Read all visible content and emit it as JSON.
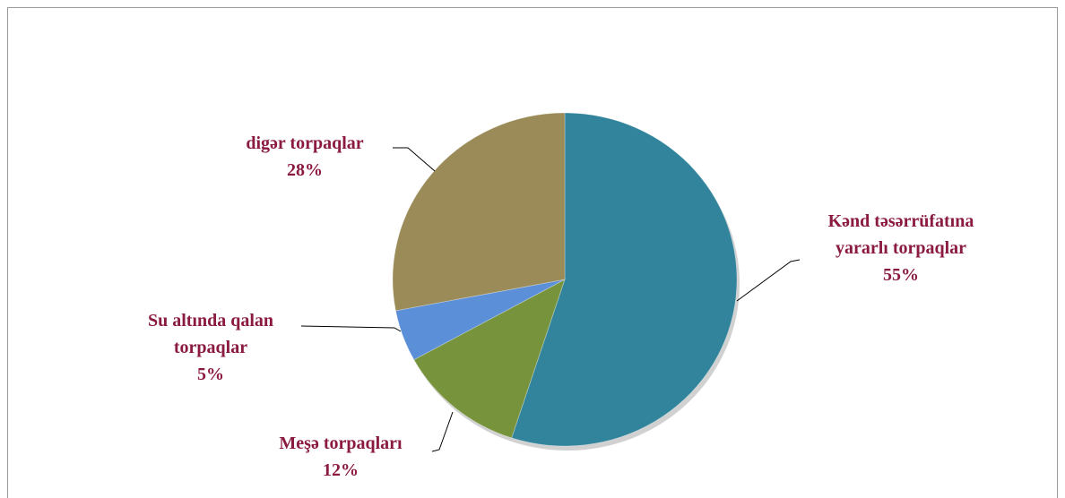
{
  "chart_data": {
    "type": "pie",
    "categories": [
      "Kənd təsərrüfatına yararlı torpaqlar",
      "Meşə torpaqları",
      "Su altında qalan torpaqlar",
      "digər torpaqlar"
    ],
    "values": [
      55,
      12,
      5,
      28
    ],
    "value_labels": [
      "55%",
      "12%",
      "5%",
      "28%"
    ],
    "colors": [
      "#31849b",
      "#77933c",
      "#5b8fd8",
      "#9a8b58"
    ]
  }
}
